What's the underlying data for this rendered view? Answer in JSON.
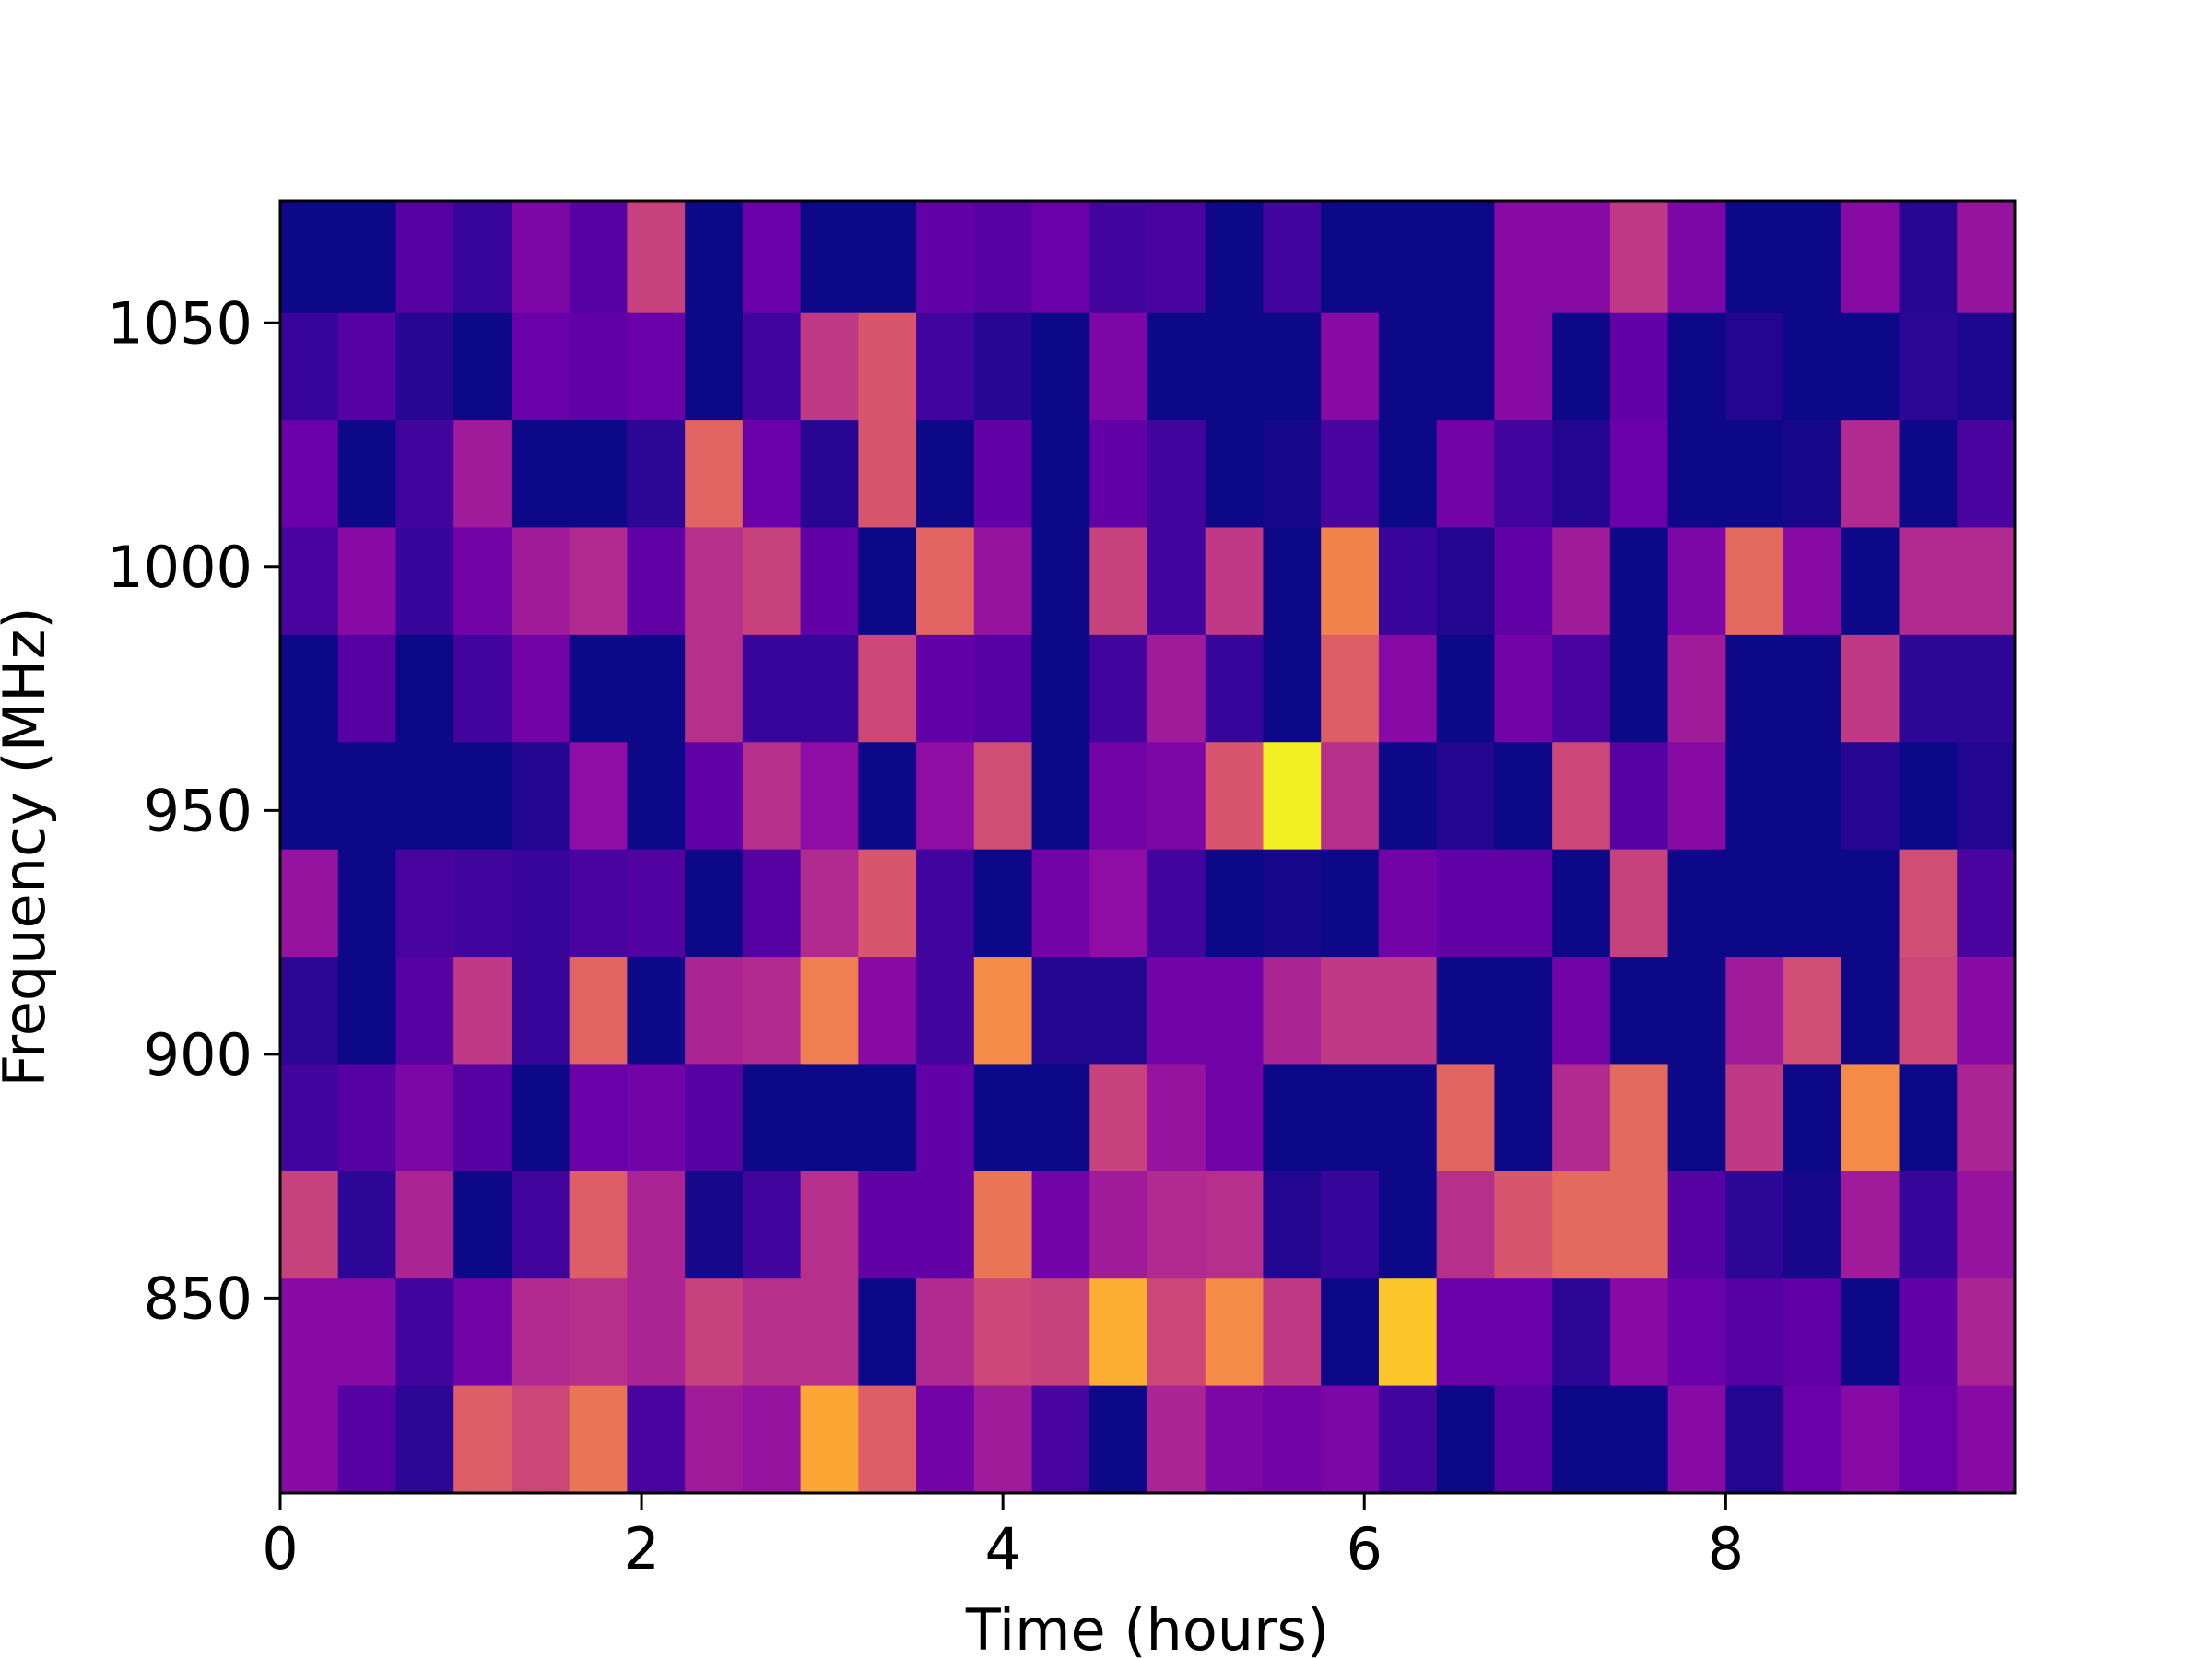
{
  "chart_data": {
    "type": "heatmap",
    "title": "",
    "xlabel": "Time (hours)",
    "ylabel": "Frequency (MHz)",
    "colormap": "plasma",
    "x_range": [
      0,
      9.6
    ],
    "y_range": [
      810,
      1075
    ],
    "x_bin_width": 0.32,
    "y_edges": [
      810,
      832,
      854,
      876,
      898,
      920,
      942,
      964,
      986,
      1008,
      1030,
      1052,
      1075
    ],
    "x_ticks": [
      0,
      2,
      4,
      6,
      8
    ],
    "x_tick_labels": [
      "0",
      "2",
      "4",
      "6",
      "8"
    ],
    "y_ticks": [
      850,
      900,
      950,
      1000,
      1050
    ],
    "y_tick_labels": [
      "850",
      "900",
      "950",
      "1000",
      "1050"
    ],
    "grid": false,
    "colorbar": false,
    "value_scale": "normalized 0-1 intensity (no colorbar shown)",
    "rows_top_to_bottom": [
      [
        0.0,
        0.0,
        0.15,
        0.08,
        0.25,
        0.15,
        0.48,
        0.0,
        0.2,
        0.0,
        0.0,
        0.18,
        0.15,
        0.2,
        0.1,
        0.12,
        0.0,
        0.1,
        0.0,
        0.0,
        0.0,
        0.28,
        0.28,
        0.45,
        0.25,
        0.0,
        0.0,
        0.28,
        0.05,
        0.32
      ],
      [
        0.08,
        0.15,
        0.05,
        0.0,
        0.2,
        0.18,
        0.2,
        0.0,
        0.1,
        0.45,
        0.55,
        0.1,
        0.05,
        0.0,
        0.25,
        0.0,
        0.0,
        0.0,
        0.28,
        0.0,
        0.0,
        0.28,
        0.0,
        0.18,
        0.0,
        0.04,
        0.0,
        0.0,
        0.06,
        0.03
      ],
      [
        0.2,
        0.0,
        0.1,
        0.35,
        0.0,
        0.0,
        0.06,
        0.6,
        0.2,
        0.05,
        0.55,
        0.0,
        0.18,
        0.0,
        0.18,
        0.1,
        0.0,
        0.02,
        0.12,
        0.0,
        0.22,
        0.1,
        0.04,
        0.2,
        0.0,
        0.0,
        0.02,
        0.4,
        0.0,
        0.12
      ],
      [
        0.12,
        0.28,
        0.08,
        0.22,
        0.35,
        0.4,
        0.18,
        0.42,
        0.48,
        0.18,
        0.0,
        0.6,
        0.32,
        0.0,
        0.48,
        0.1,
        0.45,
        0.0,
        0.7,
        0.08,
        0.04,
        0.18,
        0.35,
        0.0,
        0.25,
        0.62,
        0.28,
        0.0,
        0.4,
        0.4
      ],
      [
        0.0,
        0.15,
        0.0,
        0.1,
        0.22,
        0.0,
        0.0,
        0.42,
        0.08,
        0.08,
        0.5,
        0.18,
        0.15,
        0.0,
        0.1,
        0.35,
        0.08,
        0.0,
        0.58,
        0.28,
        0.0,
        0.22,
        0.12,
        0.0,
        0.35,
        0.0,
        0.0,
        0.45,
        0.06,
        0.06
      ],
      [
        0.0,
        0.0,
        0.0,
        0.0,
        0.04,
        0.3,
        0.0,
        0.18,
        0.42,
        0.3,
        0.0,
        0.3,
        0.52,
        0.0,
        0.22,
        0.25,
        0.55,
        0.98,
        0.42,
        0.0,
        0.04,
        0.0,
        0.5,
        0.15,
        0.28,
        0.0,
        0.0,
        0.05,
        0.0,
        0.04
      ],
      [
        0.32,
        0.0,
        0.12,
        0.1,
        0.08,
        0.12,
        0.14,
        0.0,
        0.15,
        0.4,
        0.55,
        0.1,
        0.0,
        0.22,
        0.3,
        0.1,
        0.0,
        0.02,
        0.0,
        0.22,
        0.18,
        0.18,
        0.0,
        0.48,
        0.0,
        0.0,
        0.0,
        0.0,
        0.52,
        0.12
      ],
      [
        0.06,
        0.0,
        0.15,
        0.45,
        0.08,
        0.6,
        0.0,
        0.38,
        0.4,
        0.68,
        0.28,
        0.1,
        0.72,
        0.04,
        0.04,
        0.22,
        0.22,
        0.38,
        0.45,
        0.45,
        0.0,
        0.0,
        0.22,
        0.0,
        0.0,
        0.35,
        0.52,
        0.0,
        0.5,
        0.28
      ],
      [
        0.1,
        0.15,
        0.25,
        0.15,
        0.0,
        0.2,
        0.22,
        0.15,
        0.0,
        0.0,
        0.0,
        0.18,
        0.0,
        0.0,
        0.48,
        0.32,
        0.22,
        0.0,
        0.0,
        0.0,
        0.6,
        0.0,
        0.4,
        0.62,
        0.0,
        0.45,
        0.0,
        0.72,
        0.0,
        0.38
      ],
      [
        0.48,
        0.06,
        0.38,
        0.0,
        0.1,
        0.58,
        0.38,
        0.02,
        0.1,
        0.42,
        0.18,
        0.18,
        0.65,
        0.22,
        0.35,
        0.4,
        0.42,
        0.04,
        0.08,
        0.0,
        0.42,
        0.55,
        0.62,
        0.62,
        0.15,
        0.06,
        0.02,
        0.35,
        0.08,
        0.32
      ],
      [
        0.28,
        0.28,
        0.1,
        0.22,
        0.4,
        0.42,
        0.38,
        0.48,
        0.42,
        0.42,
        0.0,
        0.4,
        0.5,
        0.48,
        0.82,
        0.5,
        0.72,
        0.45,
        0.0,
        0.88,
        0.2,
        0.2,
        0.06,
        0.28,
        0.2,
        0.15,
        0.18,
        0.0,
        0.18,
        0.38
      ],
      [
        0.28,
        0.15,
        0.06,
        0.58,
        0.5,
        0.65,
        0.12,
        0.35,
        0.32,
        0.8,
        0.58,
        0.22,
        0.35,
        0.12,
        0.0,
        0.38,
        0.25,
        0.22,
        0.25,
        0.1,
        0.0,
        0.15,
        0.0,
        0.0,
        0.28,
        0.04,
        0.2,
        0.28,
        0.2,
        0.28
      ]
    ]
  }
}
